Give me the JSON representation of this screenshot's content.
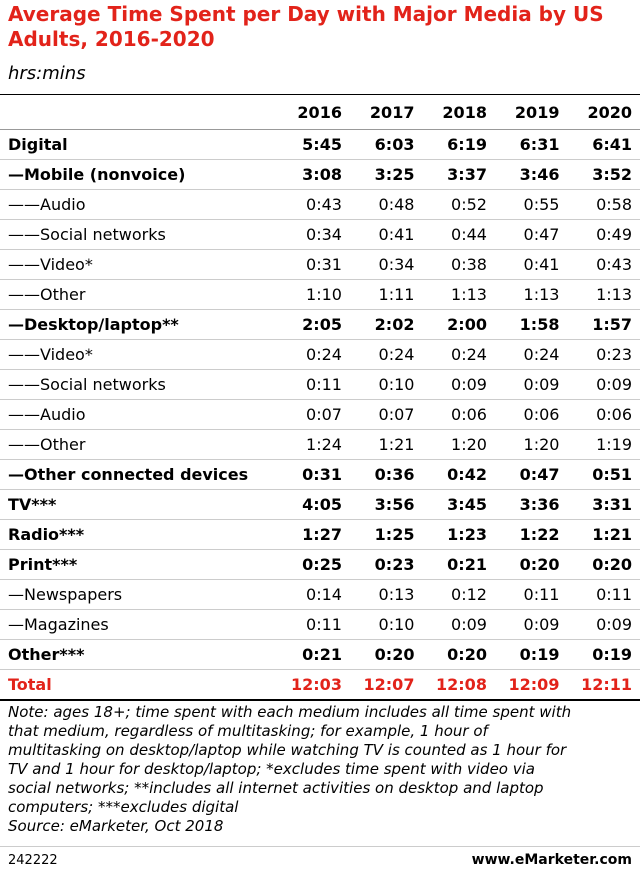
{
  "header": {
    "title": "Average Time Spent per Day with Major Media by US Adults, 2016-2020",
    "subtitle": "hrs:mins"
  },
  "table": {
    "columns": [
      "2016",
      "2017",
      "2018",
      "2019",
      "2020"
    ],
    "rows": [
      [
        "Digital",
        "5:45",
        "6:03",
        "6:19",
        "6:31",
        "6:41"
      ],
      [
        "—Mobile (nonvoice)",
        "3:08",
        "3:25",
        "3:37",
        "3:46",
        "3:52"
      ],
      [
        "——Audio",
        "0:43",
        "0:48",
        "0:52",
        "0:55",
        "0:58"
      ],
      [
        "——Social networks",
        "0:34",
        "0:41",
        "0:44",
        "0:47",
        "0:49"
      ],
      [
        "——Video*",
        "0:31",
        "0:34",
        "0:38",
        "0:41",
        "0:43"
      ],
      [
        "——Other",
        "1:10",
        "1:11",
        "1:13",
        "1:13",
        "1:13"
      ],
      [
        "—Desktop/laptop**",
        "2:05",
        "2:02",
        "2:00",
        "1:58",
        "1:57"
      ],
      [
        "——Video*",
        "0:24",
        "0:24",
        "0:24",
        "0:24",
        "0:23"
      ],
      [
        "——Social networks",
        "0:11",
        "0:10",
        "0:09",
        "0:09",
        "0:09"
      ],
      [
        "——Audio",
        "0:07",
        "0:07",
        "0:06",
        "0:06",
        "0:06"
      ],
      [
        "——Other",
        "1:24",
        "1:21",
        "1:20",
        "1:20",
        "1:19"
      ],
      [
        "—Other connected devices",
        "0:31",
        "0:36",
        "0:42",
        "0:47",
        "0:51"
      ],
      [
        "TV***",
        "4:05",
        "3:56",
        "3:45",
        "3:36",
        "3:31"
      ],
      [
        "Radio***",
        "1:27",
        "1:25",
        "1:23",
        "1:22",
        "1:21"
      ],
      [
        "Print***",
        "0:25",
        "0:23",
        "0:21",
        "0:20",
        "0:20"
      ],
      [
        "—Newspapers",
        "0:14",
        "0:13",
        "0:12",
        "0:11",
        "0:11"
      ],
      [
        "—Magazines",
        "0:11",
        "0:10",
        "0:09",
        "0:09",
        "0:09"
      ],
      [
        "Other***",
        "0:21",
        "0:20",
        "0:20",
        "0:19",
        "0:19"
      ],
      [
        "Total",
        "12:03",
        "12:07",
        "12:08",
        "12:09",
        "12:11"
      ]
    ]
  },
  "note": [
    "Note: ages 18+; time spent with each medium includes all time spent with",
    "that medium, regardless of multitasking; for example, 1 hour of",
    "multitasking on desktop/laptop while watching TV is counted as 1 hour for",
    "TV and 1 hour for desktop/laptop; *excludes time spent with video via",
    "social networks; **includes all internet activities on desktop and laptop",
    "computers; ***excludes digital"
  ],
  "source": "Source: eMarketer, Oct 2018",
  "footer": {
    "id": "242222",
    "site": "www.eMarketer.com"
  }
}
